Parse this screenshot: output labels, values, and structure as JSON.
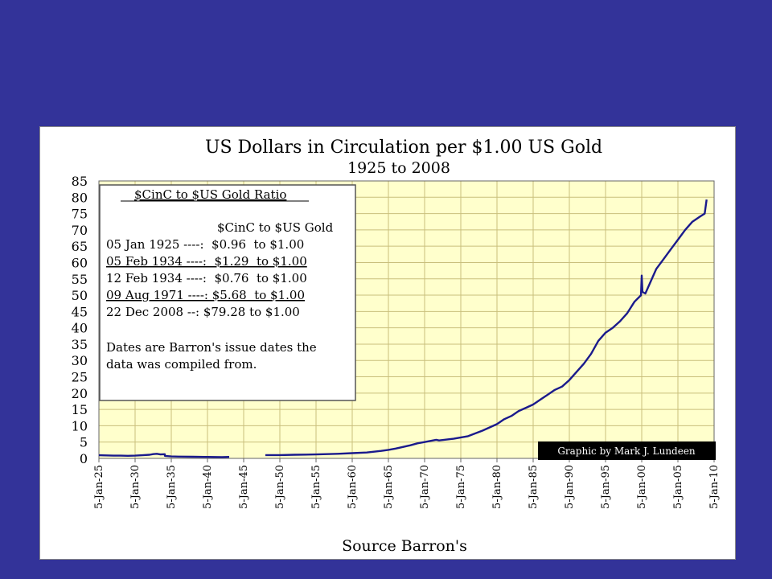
{
  "slide": {
    "background_color": "#333399",
    "frame_color": "#ffffff"
  },
  "chart_data": {
    "type": "line",
    "title": "US Dollars in Circulation per $1.00 US Gold",
    "subtitle": "1925 to 2008",
    "xlabel": "Source Barron's",
    "ylabel": "",
    "ylim": [
      0,
      85
    ],
    "yticks": [
      0,
      5,
      10,
      15,
      20,
      25,
      30,
      35,
      40,
      45,
      50,
      55,
      60,
      65,
      70,
      75,
      80,
      85
    ],
    "xlim": [
      1925,
      2010
    ],
    "x_tick_labels": [
      "5-Jan-25",
      "5-Jan-30",
      "5-Jan-35",
      "5-Jan-40",
      "5-Jan-45",
      "5-Jan-50",
      "5-Jan-55",
      "5-Jan-60",
      "5-Jan-65",
      "5-Jan-70",
      "5-Jan-75",
      "5-Jan-80",
      "5-Jan-85",
      "5-Jan-90",
      "5-Jan-95",
      "5-Jan-00",
      "5-Jan-05",
      "5-Jan-10"
    ],
    "x_tick_years": [
      1925,
      1930,
      1935,
      1940,
      1945,
      1950,
      1955,
      1960,
      1965,
      1970,
      1975,
      1980,
      1985,
      1990,
      1995,
      2000,
      2005,
      2010
    ],
    "grid": true,
    "plot_background": "#ffffcc",
    "grid_color": "#c9bf7c",
    "line_color": "#1a1a8c",
    "series": [
      {
        "segments": [
          {
            "x": [
              1925.0,
              1926,
              1927,
              1928,
              1929,
              1930,
              1931,
              1932,
              1932.5,
              1933,
              1933.5,
              1934.1,
              1934.12,
              1935,
              1936,
              1938,
              1940,
              1942,
              1943.0
            ],
            "y": [
              0.96,
              0.9,
              0.85,
              0.85,
              0.8,
              0.85,
              0.95,
              1.1,
              1.3,
              1.4,
              1.2,
              1.29,
              0.76,
              0.6,
              0.55,
              0.5,
              0.45,
              0.4,
              0.45
            ]
          },
          {
            "x": [
              1948.0,
              1950,
              1952,
              1955,
              1958,
              1960,
              1962,
              1964,
              1965,
              1966,
              1967,
              1968,
              1969,
              1970,
              1971.6,
              1972,
              1974,
              1976,
              1978,
              1980,
              1981,
              1982,
              1983,
              1984,
              1985,
              1986,
              1987,
              1988,
              1989,
              1990,
              1991,
              1992,
              1993,
              1994,
              1995,
              1996,
              1997,
              1998,
              1999,
              1999.9,
              2000.0,
              2000.1,
              2000.5,
              2001,
              2002,
              2003,
              2004,
              2005,
              2006,
              2007,
              2008.0,
              2008.7,
              2008.97
            ],
            "y": [
              1.0,
              1.0,
              1.1,
              1.2,
              1.4,
              1.6,
              1.8,
              2.3,
              2.6,
              3.0,
              3.5,
              4.0,
              4.6,
              5.0,
              5.68,
              5.5,
              6.0,
              6.8,
              8.5,
              10.5,
              12.0,
              13.0,
              14.5,
              15.5,
              16.5,
              18.0,
              19.5,
              21.0,
              22.0,
              24.0,
              26.5,
              29.0,
              32.0,
              36.0,
              38.5,
              40.0,
              42.0,
              44.5,
              48.0,
              50.0,
              56.0,
              51.0,
              50.5,
              53.0,
              58.0,
              61.0,
              64.0,
              67.0,
              70.0,
              72.5,
              74.0,
              75.0,
              79.28
            ]
          }
        ]
      }
    ]
  },
  "legend_box": {
    "heading": "$CinC to $US Gold Ratio",
    "column_header": "$CinC to $US Gold",
    "rows": [
      {
        "text": "05 Jan 1925 ----:  $0.96  to $1.00",
        "underlined": false
      },
      {
        "text": "05 Feb 1934 ----:  $1.29  to $1.00",
        "underlined": true
      },
      {
        "text": "12 Feb 1934 ----:  $0.76  to $1.00",
        "underlined": false
      },
      {
        "text": "09 Aug 1971 ----: $5.68  to $1.00",
        "underlined": true
      },
      {
        "text": "22 Dec 2008 --: $79.28 to $1.00",
        "underlined": false
      }
    ],
    "note_lines": [
      "Dates are Barron's issue dates the",
      "data was compiled from."
    ]
  },
  "credit": {
    "text": "Graphic by Mark J. Lundeen"
  }
}
